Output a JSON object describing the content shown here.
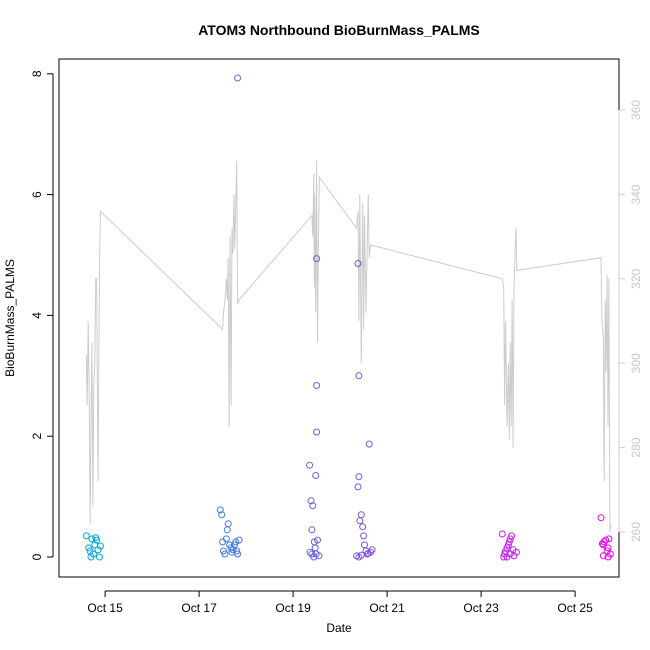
{
  "chart_data": {
    "type": "scatter",
    "title": "ATOM3 Northbound BioBurnMass_PALMS",
    "xlabel": "Date",
    "ylabel": "BioBurnMass_PALMS",
    "ylim": [
      0,
      8
    ],
    "y_ticks": [
      0,
      2,
      4,
      6,
      8
    ],
    "x_tick_labels": [
      "Oct 15",
      "Oct 17",
      "Oct 19",
      "Oct 21",
      "Oct 23",
      "Oct 25"
    ],
    "x_tick_days": [
      15,
      17,
      19,
      21,
      23,
      25
    ],
    "secondary_axis": {
      "ticks": [
        260,
        280,
        300,
        320,
        340,
        360
      ],
      "color": "#c8c8c8",
      "line_color": "#cccccc"
    },
    "point_color_start": "#00aadd",
    "point_color_end": "#ee00ee",
    "series": [
      {
        "values": [
          [
            14.6,
            0.35
          ],
          [
            14.65,
            0.15
          ],
          [
            14.68,
            0.1
          ],
          [
            14.7,
            0.0
          ],
          [
            14.72,
            0.3
          ],
          [
            14.75,
            0.05
          ],
          [
            14.78,
            0.2
          ],
          [
            14.8,
            0.32
          ],
          [
            14.82,
            0.28
          ],
          [
            14.85,
            0.12
          ],
          [
            14.88,
            0.0
          ],
          [
            14.9,
            0.18
          ],
          [
            17.45,
            0.78
          ],
          [
            17.48,
            0.7
          ],
          [
            17.5,
            0.25
          ],
          [
            17.52,
            0.1
          ],
          [
            17.55,
            0.05
          ],
          [
            17.58,
            0.3
          ],
          [
            17.6,
            0.45
          ],
          [
            17.62,
            0.55
          ],
          [
            17.65,
            0.2
          ],
          [
            17.68,
            0.15
          ],
          [
            17.7,
            0.08
          ],
          [
            17.72,
            0.12
          ],
          [
            17.75,
            0.2
          ],
          [
            17.78,
            0.25
          ],
          [
            17.8,
            0.1
          ],
          [
            17.82,
            0.05
          ],
          [
            17.85,
            0.28
          ],
          [
            17.82,
            7.93
          ],
          [
            19.35,
            1.52
          ],
          [
            19.38,
            0.93
          ],
          [
            19.4,
            0.45
          ],
          [
            19.42,
            0.85
          ],
          [
            19.45,
            0.25
          ],
          [
            19.47,
            0.15
          ],
          [
            19.49,
            0.05
          ],
          [
            19.5,
            4.94
          ],
          [
            19.5,
            2.84
          ],
          [
            19.5,
            2.07
          ],
          [
            19.48,
            1.35
          ],
          [
            19.52,
            0.28
          ],
          [
            19.4,
            0.05
          ],
          [
            19.36,
            0.08
          ],
          [
            19.44,
            0.0
          ],
          [
            19.55,
            0.02
          ],
          [
            20.38,
            4.86
          ],
          [
            20.4,
            3.0
          ],
          [
            20.4,
            1.33
          ],
          [
            20.38,
            1.16
          ],
          [
            20.45,
            0.7
          ],
          [
            20.42,
            0.6
          ],
          [
            20.48,
            0.5
          ],
          [
            20.5,
            0.35
          ],
          [
            20.52,
            0.2
          ],
          [
            20.55,
            0.1
          ],
          [
            20.58,
            0.05
          ],
          [
            20.62,
            1.87
          ],
          [
            20.65,
            0.08
          ],
          [
            20.68,
            0.12
          ],
          [
            20.35,
            0.02
          ],
          [
            20.4,
            0.0
          ],
          [
            20.45,
            0.03
          ],
          [
            20.6,
            0.06
          ],
          [
            23.45,
            0.38
          ],
          [
            23.48,
            0.0
          ],
          [
            23.5,
            0.05
          ],
          [
            23.52,
            0.1
          ],
          [
            23.55,
            0.15
          ],
          [
            23.58,
            0.2
          ],
          [
            23.6,
            0.25
          ],
          [
            23.62,
            0.3
          ],
          [
            23.65,
            0.35
          ],
          [
            23.68,
            0.12
          ],
          [
            23.7,
            0.02
          ],
          [
            23.75,
            0.08
          ],
          [
            23.55,
            0.0
          ],
          [
            23.62,
            0.05
          ],
          [
            25.55,
            0.65
          ],
          [
            25.58,
            0.22
          ],
          [
            25.6,
            0.2
          ],
          [
            25.62,
            0.25
          ],
          [
            25.65,
            0.28
          ],
          [
            25.68,
            0.1
          ],
          [
            25.7,
            0.15
          ],
          [
            25.72,
            0.3
          ],
          [
            25.75,
            0.05
          ],
          [
            25.6,
            0.02
          ],
          [
            25.7,
            0.0
          ]
        ]
      },
      {
        "axis": "right",
        "values": [
          [
            14.6,
            302
          ],
          [
            14.62,
            290
          ],
          [
            14.64,
            310
          ],
          [
            14.66,
            296
          ],
          [
            14.68,
            262
          ],
          [
            14.7,
            285
          ],
          [
            14.72,
            305
          ],
          [
            14.74,
            266
          ],
          [
            14.76,
            295
          ],
          [
            14.78,
            300
          ],
          [
            14.8,
            320
          ],
          [
            14.82,
            320
          ],
          [
            14.85,
            272
          ],
          [
            14.88,
            322
          ],
          [
            14.9,
            336
          ],
          [
            17.5,
            308
          ],
          [
            17.52,
            312
          ],
          [
            17.55,
            315
          ],
          [
            17.58,
            320
          ],
          [
            17.6,
            315
          ],
          [
            17.62,
            325
          ],
          [
            17.64,
            285
          ],
          [
            17.66,
            330
          ],
          [
            17.68,
            290
          ],
          [
            17.7,
            332
          ],
          [
            17.72,
            326
          ],
          [
            17.74,
            340
          ],
          [
            17.76,
            327
          ],
          [
            17.78,
            338
          ],
          [
            17.8,
            348
          ],
          [
            17.82,
            314
          ],
          [
            17.85,
            315
          ],
          [
            19.4,
            335
          ],
          [
            19.42,
            330
          ],
          [
            19.44,
            345
          ],
          [
            19.45,
            318
          ],
          [
            19.46,
            340
          ],
          [
            19.48,
            312
          ],
          [
            19.5,
            348
          ],
          [
            19.52,
            305
          ],
          [
            19.54,
            330
          ],
          [
            19.56,
            344
          ],
          [
            20.35,
            332
          ],
          [
            20.38,
            336
          ],
          [
            20.4,
            310
          ],
          [
            20.42,
            340
          ],
          [
            20.45,
            300
          ],
          [
            20.48,
            338
          ],
          [
            20.5,
            308
          ],
          [
            20.52,
            335
          ],
          [
            20.55,
            312
          ],
          [
            20.58,
            330
          ],
          [
            20.6,
            340
          ],
          [
            20.62,
            325
          ],
          [
            20.65,
            328
          ],
          [
            23.45,
            320
          ],
          [
            23.48,
            318
          ],
          [
            23.5,
            290
          ],
          [
            23.52,
            310
          ],
          [
            23.55,
            285
          ],
          [
            23.58,
            300
          ],
          [
            23.6,
            282
          ],
          [
            23.62,
            305
          ],
          [
            23.64,
            285
          ],
          [
            23.66,
            315
          ],
          [
            23.68,
            280
          ],
          [
            23.7,
            318
          ],
          [
            23.72,
            325
          ],
          [
            23.74,
            332
          ],
          [
            23.76,
            322
          ],
          [
            25.55,
            325
          ],
          [
            25.57,
            310
          ],
          [
            25.6,
            306
          ],
          [
            25.62,
            272
          ],
          [
            25.64,
            315
          ],
          [
            25.66,
            298
          ],
          [
            25.68,
            321
          ],
          [
            25.7,
            285
          ],
          [
            25.72,
            320
          ],
          [
            25.74,
            260
          ],
          [
            25.76,
            262
          ]
        ]
      }
    ]
  }
}
